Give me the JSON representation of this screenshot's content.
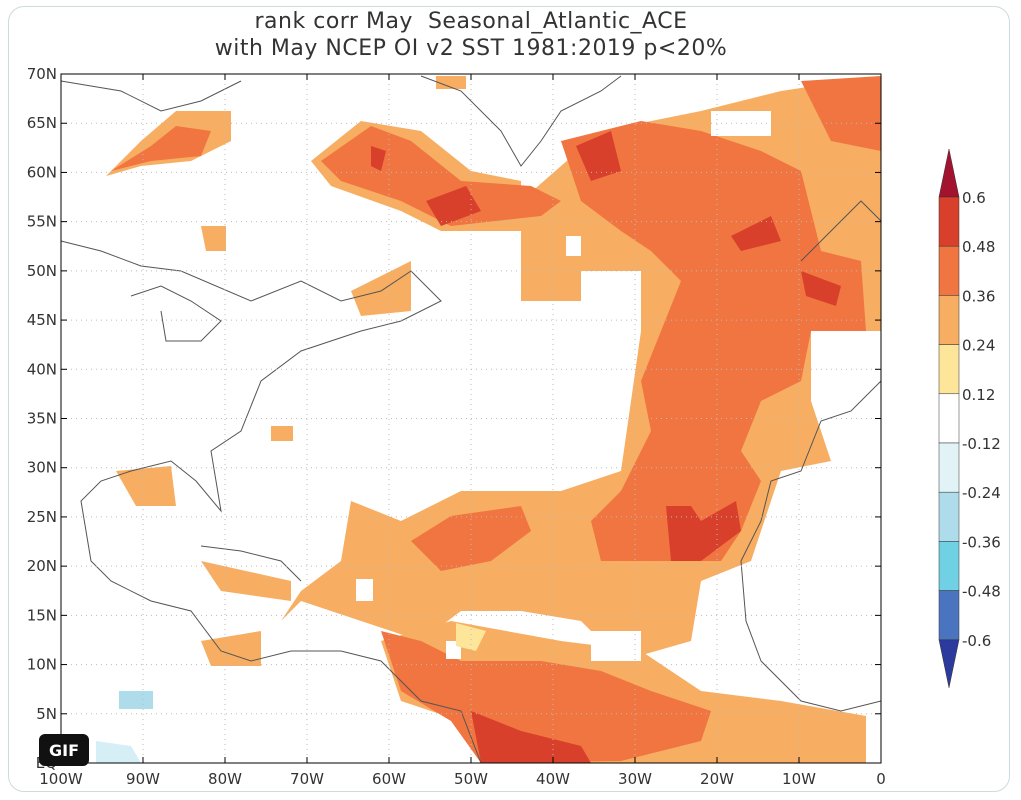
{
  "title": [
    "rank corr May  Seasonal_Atlantic_ACE",
    "with May NCEP OI v2 SST 1981:2019 p<20%"
  ],
  "map": {
    "lat_labels": [
      "70N",
      "65N",
      "60N",
      "55N",
      "50N",
      "45N",
      "40N",
      "35N",
      "30N",
      "25N",
      "20N",
      "15N",
      "10N",
      "5N",
      "EQ"
    ],
    "lon_labels": [
      "100W",
      "90W",
      "80W",
      "70W",
      "60W",
      "50W",
      "40W",
      "30W",
      "20W",
      "10W",
      "0"
    ],
    "grid": true
  },
  "colorbar": {
    "labels": [
      "0.6",
      "0.48",
      "0.36",
      "0.24",
      "0.12",
      "-0.12",
      "-0.24",
      "-0.36",
      "-0.48",
      "-0.6"
    ],
    "colors": [
      "#a3122e",
      "#d8402b",
      "#f07541",
      "#f7ae62",
      "#fde59a",
      "#ffffff",
      "#e2f3f8",
      "#afdcea",
      "#70d0e4",
      "#4b74c0",
      "#2b3a9c"
    ]
  },
  "badge": "GIF"
}
